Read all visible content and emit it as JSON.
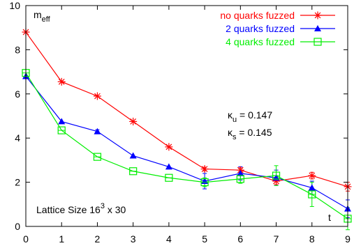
{
  "chart_data": {
    "type": "line",
    "title": "",
    "xlabel": "t",
    "ylabel": "m_eff",
    "ylabel_main": "m",
    "ylabel_sub": "eff",
    "xlim": [
      0,
      9
    ],
    "ylim": [
      0,
      10
    ],
    "x_ticks": [
      0,
      1,
      2,
      3,
      4,
      5,
      6,
      7,
      8,
      9
    ],
    "y_ticks": [
      0,
      2,
      4,
      6,
      8,
      10
    ],
    "grid": false,
    "legend_position": "top-right",
    "series": [
      {
        "name": "no quarks fuzzed",
        "color": "#ff0000",
        "marker": "asterisk",
        "x": [
          0,
          1,
          2,
          3,
          4,
          5,
          6,
          7,
          8,
          9
        ],
        "y": [
          8.8,
          6.55,
          5.9,
          4.75,
          3.6,
          2.6,
          2.55,
          2.05,
          2.3,
          1.8
        ],
        "err": [
          0.05,
          0.05,
          0.05,
          0.05,
          0.05,
          0.08,
          0.1,
          0.15,
          0.15,
          0.2
        ]
      },
      {
        "name": "2 quarks fuzzed",
        "color": "#0000ff",
        "marker": "triangle",
        "x": [
          0,
          1,
          2,
          3,
          4,
          5,
          6,
          7,
          8,
          9
        ],
        "y": [
          6.8,
          4.75,
          4.3,
          3.2,
          2.7,
          2.05,
          2.4,
          2.2,
          1.75,
          0.8
        ],
        "err": [
          0.05,
          0.05,
          0.08,
          0.05,
          0.05,
          0.35,
          0.3,
          0.35,
          0.3,
          0.4
        ]
      },
      {
        "name": "4 quarks fuzzed",
        "color": "#00ee00",
        "marker": "square",
        "x": [
          0,
          1,
          2,
          3,
          4,
          5,
          6,
          7,
          8,
          9
        ],
        "y": [
          6.95,
          4.35,
          3.15,
          2.5,
          2.2,
          2.0,
          2.15,
          2.3,
          1.45,
          0.35
        ],
        "err": [
          0.05,
          0.05,
          0.05,
          0.05,
          0.05,
          0.2,
          0.2,
          0.45,
          0.55,
          0.5
        ]
      }
    ],
    "annotations": {
      "kappa_symbol": "κ",
      "kappa_u_sub": "u",
      "kappa_u_value": " = 0.147",
      "kappa_s_sub": "s",
      "kappa_s_value": " = 0.145",
      "lattice_prefix": "Lattice Size 16",
      "lattice_exp": "3",
      "lattice_suffix": " x 30"
    }
  }
}
